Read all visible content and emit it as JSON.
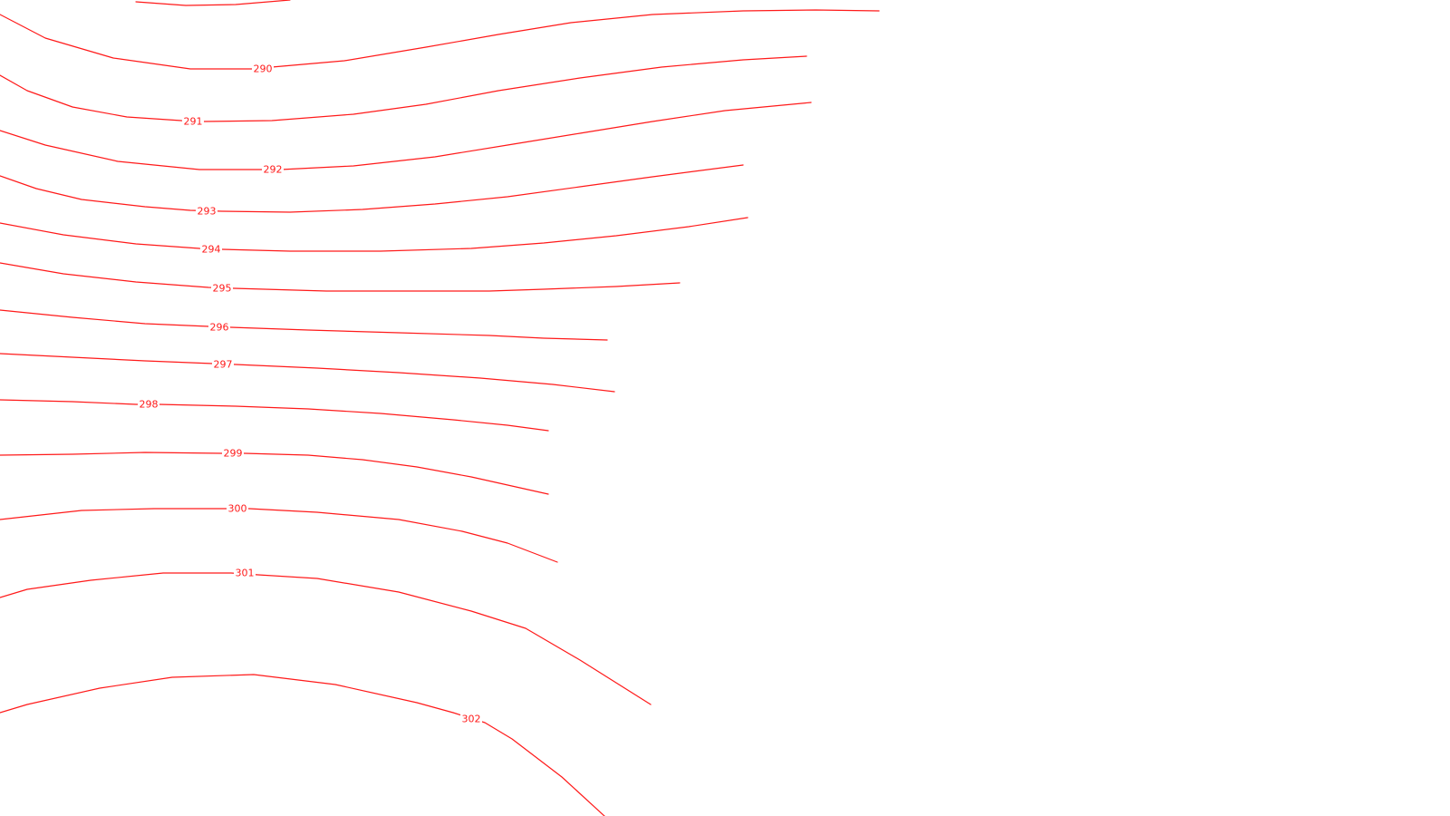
{
  "map": {
    "colors": {
      "contour": "#ff1a1a",
      "background": "#ffffff"
    },
    "contours": [
      {
        "elevation": null,
        "label": ""
      },
      {
        "elevation": 290,
        "label": "290"
      },
      {
        "elevation": 291,
        "label": "291"
      },
      {
        "elevation": 292,
        "label": "292"
      },
      {
        "elevation": 293,
        "label": "293"
      },
      {
        "elevation": 294,
        "label": "294"
      },
      {
        "elevation": 295,
        "label": "295"
      },
      {
        "elevation": 296,
        "label": "296"
      },
      {
        "elevation": 297,
        "label": "297"
      },
      {
        "elevation": 298,
        "label": "298"
      },
      {
        "elevation": 299,
        "label": "299"
      },
      {
        "elevation": 300,
        "label": "300"
      },
      {
        "elevation": 301,
        "label": "301"
      },
      {
        "elevation": 302,
        "label": "302"
      }
    ]
  }
}
